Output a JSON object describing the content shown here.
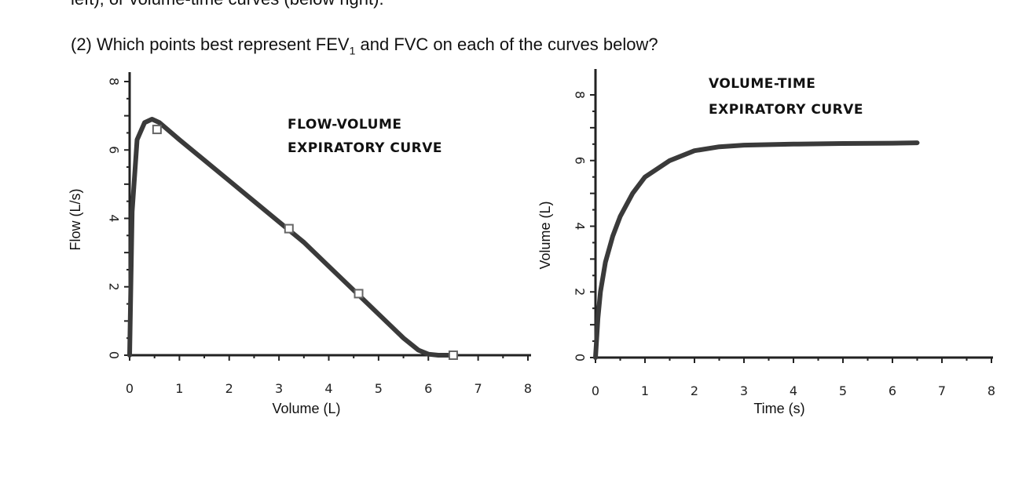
{
  "page": {
    "top_cut_text": "left), or volume-time curves (below right).",
    "question_prefix": "(2) Which points best represent FEV",
    "question_sub": "1",
    "question_suffix": " and FVC on each of the curves below?"
  },
  "colors": {
    "curve": "#3a3a3a",
    "axis": "#222222",
    "marker": "#666666"
  },
  "chart_data": [
    {
      "type": "line",
      "title_lines": [
        "FLOW-VOLUME",
        "EXPIRATORY CURVE"
      ],
      "xlabel": "Volume (L)",
      "ylabel": "Flow (L/s)",
      "xlim": [
        0,
        8
      ],
      "ylim": [
        0,
        8
      ],
      "xticks": [
        "0",
        "1",
        "2",
        "3",
        "4",
        "5",
        "6",
        "7",
        "8"
      ],
      "yticks": [
        "0",
        "2",
        "4",
        "6",
        "8"
      ],
      "grid": false,
      "series": [
        {
          "x": [
            0,
            0.05,
            0.15,
            0.3,
            0.45,
            0.6,
            1.0,
            1.5,
            2.0,
            2.5,
            3.0,
            3.5,
            4.0,
            4.5,
            5.0,
            5.5,
            5.8,
            6.0,
            6.2,
            6.5
          ],
          "y": [
            0,
            4.2,
            6.3,
            6.8,
            6.9,
            6.8,
            6.3,
            5.7,
            5.1,
            4.5,
            3.9,
            3.3,
            2.6,
            1.9,
            1.2,
            0.5,
            0.15,
            0.03,
            0.0,
            0.0
          ]
        }
      ],
      "markers": [
        {
          "x": 0.55,
          "y": 6.6
        },
        {
          "x": 3.2,
          "y": 3.7
        },
        {
          "x": 4.6,
          "y": 1.8
        },
        {
          "x": 6.5,
          "y": 0.0
        }
      ]
    },
    {
      "type": "line",
      "title_lines": [
        "VOLUME-TIME",
        "EXPIRATORY CURVE"
      ],
      "xlabel": "Time (s)",
      "ylabel": "Volume (L)",
      "xlim": [
        0,
        8
      ],
      "ylim": [
        0,
        8
      ],
      "xticks": [
        "0",
        "1",
        "2",
        "3",
        "4",
        "5",
        "6",
        "7",
        "8"
      ],
      "yticks": [
        "0",
        "2",
        "4",
        "6",
        "8"
      ],
      "grid": false,
      "series": [
        {
          "x": [
            0,
            0.05,
            0.1,
            0.2,
            0.35,
            0.5,
            0.75,
            1.0,
            1.5,
            2.0,
            2.5,
            3.0,
            4.0,
            5.0,
            6.0,
            6.5
          ],
          "y": [
            0,
            1.2,
            2.0,
            2.9,
            3.7,
            4.3,
            5.0,
            5.5,
            6.0,
            6.3,
            6.42,
            6.47,
            6.5,
            6.52,
            6.53,
            6.54
          ]
        }
      ],
      "markers": []
    }
  ]
}
